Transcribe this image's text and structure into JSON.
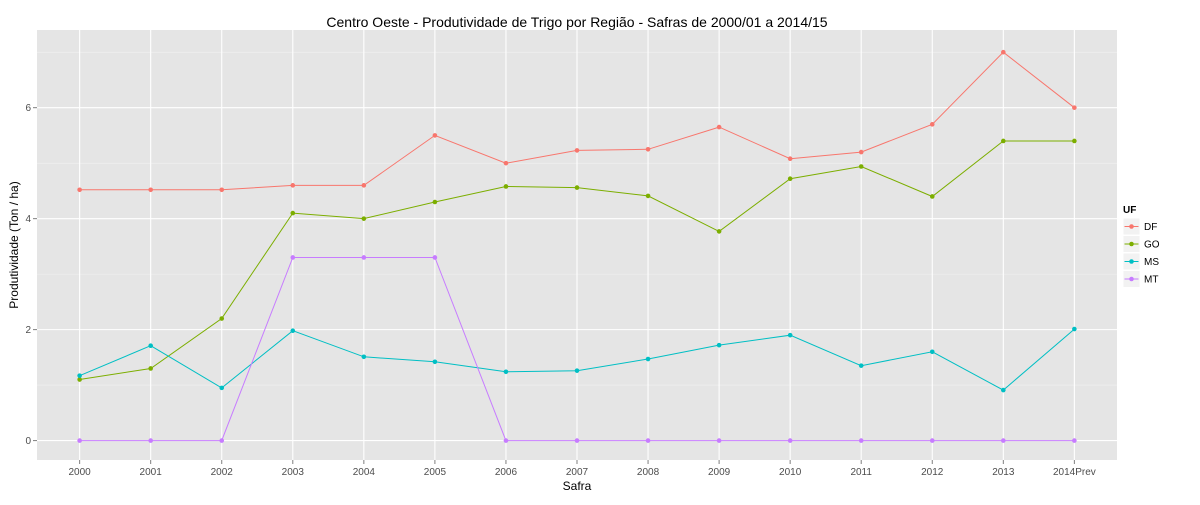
{
  "chart_data": {
    "type": "line",
    "title": "Centro Oeste  - Produtividade de Trigo por Região - Safras de 2000/01 a 2014/15",
    "xlabel": "Safra",
    "ylabel": "Produtividade (Ton / ha)",
    "categories": [
      "2000",
      "2001",
      "2002",
      "2003",
      "2004",
      "2005",
      "2006",
      "2007",
      "2008",
      "2009",
      "2010",
      "2011",
      "2012",
      "2013",
      "2014Prev"
    ],
    "y_ticks": [
      0,
      2,
      4,
      6
    ],
    "ylim": [
      -0.35,
      7.4
    ],
    "grid": true,
    "legend_position": "right",
    "legend_title": "UF",
    "series": [
      {
        "name": "DF",
        "color": "#F8766D",
        "values": [
          4.52,
          4.52,
          4.52,
          4.6,
          4.6,
          5.5,
          5.0,
          5.23,
          5.25,
          5.65,
          5.08,
          5.2,
          5.7,
          7.0,
          6.0
        ]
      },
      {
        "name": "GO",
        "color": "#7CAE00",
        "values": [
          1.1,
          1.3,
          2.2,
          4.1,
          4.0,
          4.3,
          4.58,
          4.56,
          4.41,
          3.77,
          4.72,
          4.94,
          4.4,
          5.4,
          5.4
        ]
      },
      {
        "name": "MS",
        "color": "#00BFC4",
        "values": [
          1.17,
          1.71,
          0.95,
          1.98,
          1.51,
          1.42,
          1.24,
          1.26,
          1.47,
          1.72,
          1.9,
          1.35,
          1.6,
          0.91,
          2.01
        ]
      },
      {
        "name": "MT",
        "color": "#C77CFF",
        "values": [
          0,
          0,
          0,
          3.3,
          3.3,
          3.3,
          0,
          0,
          0,
          0,
          0,
          0,
          0,
          0,
          0
        ]
      }
    ]
  }
}
